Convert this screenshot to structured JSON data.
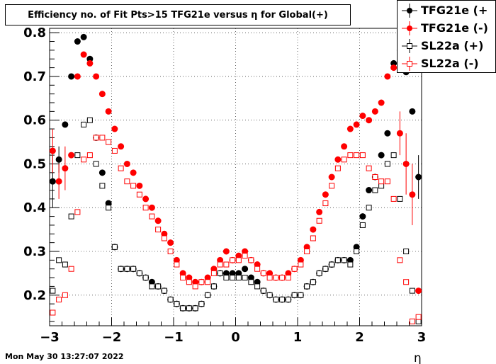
{
  "title": "Efficiency no. of Fit Pts>15 TFG21e versus η for Global(+)",
  "footer_date": "Mon May 30 13:27:07 2022",
  "legend": [
    {
      "label": "TFG21e (+",
      "color": "#000000",
      "marker": "filled-circle"
    },
    {
      "label": "TFG21e (-)",
      "color": "#ff0000",
      "marker": "filled-circle"
    },
    {
      "label": "SL22a (+)",
      "color": "#000000",
      "marker": "open-square"
    },
    {
      "label": "SL22a (-)",
      "color": "#ff0000",
      "marker": "open-square"
    }
  ],
  "chart_data": {
    "type": "scatter",
    "title": "Efficiency no. of Fit Pts>15 TFG21e versus η for Global(+)",
    "xlabel": "η",
    "ylabel": "",
    "xlim": [
      -3,
      3
    ],
    "ylim": [
      0.13,
      0.81
    ],
    "x_ticks": [
      -3,
      -2,
      -1,
      0,
      1,
      2,
      3
    ],
    "y_ticks": [
      0.2,
      0.3,
      0.4,
      0.5,
      0.6,
      0.7,
      0.8
    ],
    "x_tick_labels": [
      "−3",
      "−2",
      "−1",
      "0",
      "1",
      "2",
      "3"
    ],
    "y_tick_labels": [
      "0.2",
      "0.3",
      "0.4",
      "0.5",
      "0.6",
      "0.7",
      "0.8"
    ],
    "grid": true,
    "x": [
      -2.95,
      -2.85,
      -2.75,
      -2.65,
      -2.55,
      -2.45,
      -2.35,
      -2.25,
      -2.15,
      -2.05,
      -1.95,
      -1.85,
      -1.75,
      -1.65,
      -1.55,
      -1.45,
      -1.35,
      -1.25,
      -1.15,
      -1.05,
      -0.95,
      -0.85,
      -0.75,
      -0.65,
      -0.55,
      -0.45,
      -0.35,
      -0.25,
      -0.15,
      -0.05,
      0.05,
      0.15,
      0.25,
      0.35,
      0.45,
      0.55,
      0.65,
      0.75,
      0.85,
      0.95,
      1.05,
      1.15,
      1.25,
      1.35,
      1.45,
      1.55,
      1.65,
      1.75,
      1.85,
      1.95,
      2.05,
      2.15,
      2.25,
      2.35,
      2.45,
      2.55,
      2.65,
      2.75,
      2.85,
      2.95
    ],
    "series": [
      {
        "name": "TFG21e (+",
        "color": "#000000",
        "marker": "filled-circle",
        "values": [
          0.46,
          0.51,
          0.59,
          0.7,
          0.78,
          0.79,
          0.74,
          0.56,
          0.48,
          0.41,
          0.31,
          0.26,
          0.26,
          0.26,
          0.25,
          0.24,
          0.23,
          0.22,
          0.21,
          0.19,
          0.18,
          0.17,
          0.17,
          0.17,
          0.18,
          0.2,
          0.22,
          0.25,
          0.25,
          0.25,
          0.25,
          0.26,
          0.24,
          0.23,
          0.21,
          0.2,
          0.19,
          0.19,
          0.19,
          0.2,
          0.2,
          0.22,
          0.23,
          0.25,
          0.26,
          0.27,
          0.28,
          0.28,
          0.28,
          0.31,
          0.38,
          0.44,
          0.47,
          0.52,
          0.57,
          0.73,
          0.76,
          0.71,
          0.62,
          0.47
        ],
        "errors": [
          0.06,
          0.03,
          0,
          0,
          0,
          0,
          0,
          0,
          0,
          0,
          0,
          0,
          0,
          0,
          0,
          0,
          0,
          0,
          0,
          0,
          0,
          0,
          0,
          0,
          0,
          0,
          0,
          0,
          0,
          0,
          0,
          0,
          0,
          0,
          0,
          0,
          0,
          0,
          0,
          0,
          0,
          0,
          0,
          0,
          0,
          0,
          0,
          0,
          0,
          0,
          0,
          0,
          0,
          0,
          0,
          0,
          0,
          0,
          0,
          0.05
        ]
      },
      {
        "name": "TFG21e (-)",
        "color": "#ff0000",
        "marker": "filled-circle",
        "values": [
          0.53,
          0.46,
          0.49,
          0.52,
          0.7,
          0.75,
          0.73,
          0.7,
          0.66,
          0.62,
          0.58,
          0.54,
          0.5,
          0.48,
          0.45,
          0.42,
          0.4,
          0.37,
          0.34,
          0.32,
          0.28,
          0.25,
          0.24,
          0.23,
          0.23,
          0.24,
          0.26,
          0.28,
          0.3,
          0.28,
          0.29,
          0.3,
          0.28,
          0.27,
          0.25,
          0.25,
          0.24,
          0.24,
          0.25,
          0.26,
          0.28,
          0.31,
          0.35,
          0.39,
          0.43,
          0.47,
          0.51,
          0.54,
          0.58,
          0.59,
          0.61,
          0.6,
          0.62,
          0.64,
          0.7,
          0.72,
          0.57,
          0.5,
          0.43,
          0.21
        ],
        "errors": [
          0.05,
          0.04,
          0.05,
          0,
          0,
          0,
          0,
          0,
          0,
          0,
          0,
          0,
          0,
          0,
          0,
          0,
          0,
          0,
          0,
          0,
          0,
          0,
          0,
          0,
          0,
          0,
          0,
          0,
          0,
          0,
          0,
          0,
          0,
          0,
          0,
          0,
          0,
          0,
          0,
          0,
          0,
          0,
          0,
          0,
          0,
          0,
          0,
          0,
          0,
          0,
          0,
          0,
          0,
          0,
          0,
          0,
          0.05,
          0.07,
          0.07,
          0
        ]
      },
      {
        "name": "SL22a (+)",
        "color": "#000000",
        "marker": "open-square",
        "values": [
          0.21,
          0.28,
          0.27,
          0.38,
          0.52,
          0.59,
          0.6,
          0.5,
          0.45,
          0.4,
          0.31,
          0.26,
          0.26,
          0.26,
          0.25,
          0.24,
          0.22,
          0.22,
          0.21,
          0.19,
          0.18,
          0.17,
          0.17,
          0.17,
          0.18,
          0.2,
          0.22,
          0.25,
          0.24,
          0.24,
          0.24,
          0.24,
          0.23,
          0.22,
          0.21,
          0.2,
          0.19,
          0.19,
          0.19,
          0.2,
          0.2,
          0.22,
          0.23,
          0.25,
          0.26,
          0.27,
          0.28,
          0.28,
          0.27,
          0.3,
          0.36,
          0.4,
          0.44,
          0.45,
          0.5,
          0.52,
          0.42,
          0.3,
          0.21,
          0.14
        ],
        "errors": [
          0,
          0,
          0,
          0,
          0,
          0,
          0,
          0,
          0,
          0,
          0,
          0,
          0,
          0,
          0,
          0,
          0,
          0,
          0,
          0,
          0,
          0,
          0,
          0,
          0,
          0,
          0,
          0,
          0,
          0,
          0,
          0,
          0,
          0,
          0,
          0,
          0,
          0,
          0,
          0,
          0,
          0,
          0,
          0,
          0,
          0,
          0,
          0,
          0,
          0,
          0,
          0,
          0,
          0,
          0,
          0,
          0,
          0,
          0,
          0
        ]
      },
      {
        "name": "SL22a (-)",
        "color": "#ff0000",
        "marker": "open-square",
        "values": [
          0.16,
          0.19,
          0.2,
          0.26,
          0.39,
          0.51,
          0.52,
          0.56,
          0.56,
          0.55,
          0.53,
          0.49,
          0.46,
          0.45,
          0.43,
          0.4,
          0.38,
          0.35,
          0.33,
          0.3,
          0.27,
          0.24,
          0.23,
          0.22,
          0.23,
          0.23,
          0.25,
          0.27,
          0.27,
          0.28,
          0.28,
          0.29,
          0.28,
          0.26,
          0.25,
          0.24,
          0.24,
          0.24,
          0.24,
          0.26,
          0.27,
          0.3,
          0.33,
          0.37,
          0.41,
          0.45,
          0.49,
          0.51,
          0.52,
          0.52,
          0.52,
          0.49,
          0.47,
          0.46,
          0.46,
          0.42,
          0.28,
          0.23,
          0.14,
          0.15
        ],
        "errors": [
          0,
          0,
          0,
          0,
          0,
          0,
          0,
          0,
          0,
          0,
          0,
          0,
          0,
          0,
          0,
          0,
          0,
          0,
          0,
          0,
          0,
          0,
          0,
          0,
          0,
          0,
          0,
          0,
          0,
          0,
          0,
          0,
          0,
          0,
          0,
          0,
          0,
          0,
          0,
          0,
          0,
          0,
          0,
          0,
          0,
          0,
          0,
          0,
          0,
          0,
          0,
          0,
          0,
          0,
          0,
          0,
          0,
          0,
          0,
          0
        ]
      }
    ]
  }
}
